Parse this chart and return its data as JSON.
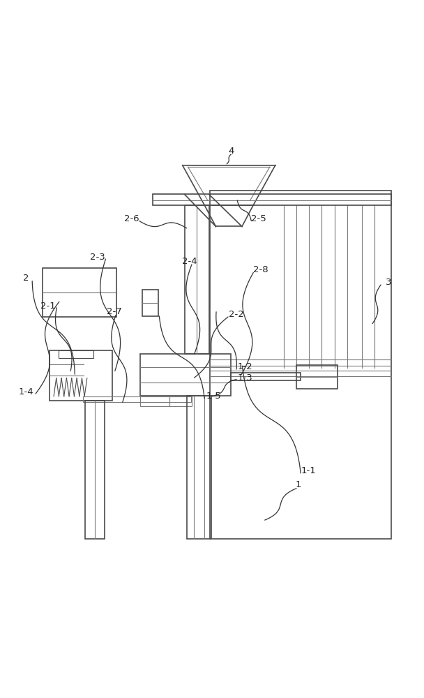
{
  "bg_color": "#ffffff",
  "line_color": "#4a4a4a",
  "line_color2": "#7a7a7a",
  "fig_width": 6.08,
  "fig_height": 10.0
}
